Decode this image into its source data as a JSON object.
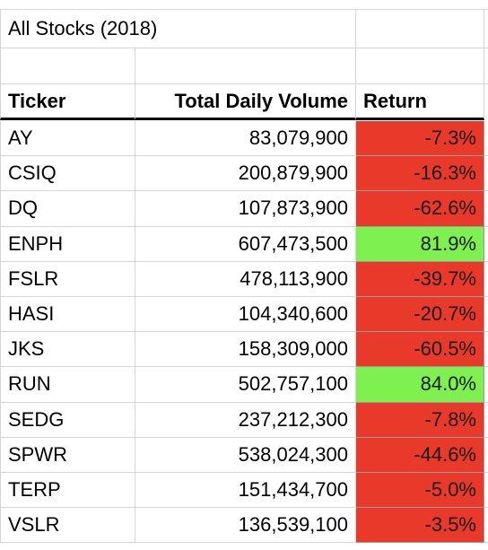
{
  "sheet": {
    "title": "All Stocks (2018)",
    "headers": {
      "ticker": "Ticker",
      "volume": "Total Daily Volume",
      "return": "Return"
    },
    "colors": {
      "negative": "#e8392a",
      "positive": "#7ef04f"
    },
    "rows": [
      {
        "ticker": "AY",
        "volume": "83,079,900",
        "return": "-7.3%",
        "status": "negative"
      },
      {
        "ticker": "CSIQ",
        "volume": "200,879,900",
        "return": "-16.3%",
        "status": "negative"
      },
      {
        "ticker": "DQ",
        "volume": "107,873,900",
        "return": "-62.6%",
        "status": "negative"
      },
      {
        "ticker": "ENPH",
        "volume": "607,473,500",
        "return": "81.9%",
        "status": "positive"
      },
      {
        "ticker": "FSLR",
        "volume": "478,113,900",
        "return": "-39.7%",
        "status": "negative"
      },
      {
        "ticker": "HASI",
        "volume": "104,340,600",
        "return": "-20.7%",
        "status": "negative"
      },
      {
        "ticker": "JKS",
        "volume": "158,309,000",
        "return": "-60.5%",
        "status": "negative"
      },
      {
        "ticker": "RUN",
        "volume": "502,757,100",
        "return": "84.0%",
        "status": "positive"
      },
      {
        "ticker": "SEDG",
        "volume": "237,212,300",
        "return": "-7.8%",
        "status": "negative"
      },
      {
        "ticker": "SPWR",
        "volume": "538,024,300",
        "return": "-44.6%",
        "status": "negative"
      },
      {
        "ticker": "TERP",
        "volume": "151,434,700",
        "return": "-5.0%",
        "status": "negative"
      },
      {
        "ticker": "VSLR",
        "volume": "136,539,100",
        "return": "-3.5%",
        "status": "negative"
      }
    ]
  }
}
